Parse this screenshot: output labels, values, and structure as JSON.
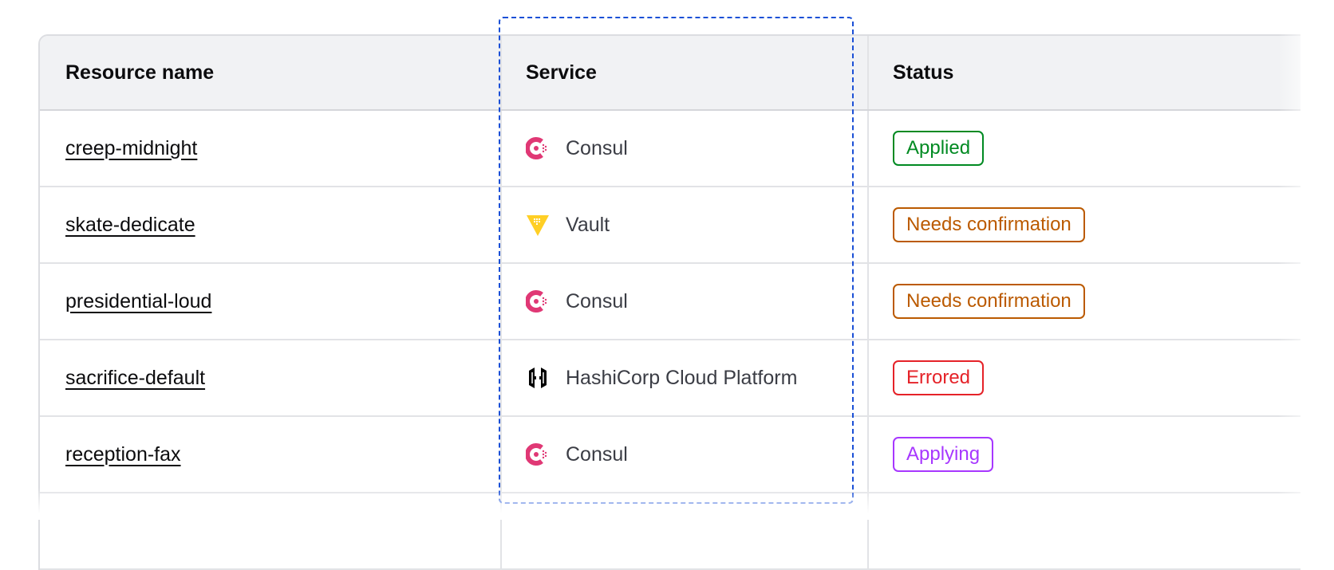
{
  "columns": [
    "Resource name",
    "Service",
    "Status"
  ],
  "rows": [
    {
      "name": "creep-midnight",
      "service": "Consul",
      "service_icon": "consul-icon",
      "status": "Applied",
      "status_color": "#008a22"
    },
    {
      "name": "skate-dedicate",
      "service": "Vault",
      "service_icon": "vault-icon",
      "status": "Needs confirmation",
      "status_color": "#bb5a00"
    },
    {
      "name": "presidential-loud",
      "service": "Consul",
      "service_icon": "consul-icon",
      "status": "Needs confirmation",
      "status_color": "#bb5a00"
    },
    {
      "name": "sacrifice-default",
      "service": "HashiCorp Cloud Platform",
      "service_icon": "hcp-icon",
      "status": "Errored",
      "status_color": "#e52228"
    },
    {
      "name": "reception-fax",
      "service": "Consul",
      "service_icon": "consul-icon",
      "status": "Applying",
      "status_color": "#a737ff"
    }
  ],
  "colors": {
    "consul": "#e03875",
    "vault": "#ffcf25",
    "hcp": "#000000",
    "focus_outline": "#1a4fd6",
    "header_bg": "#f1f2f4"
  }
}
